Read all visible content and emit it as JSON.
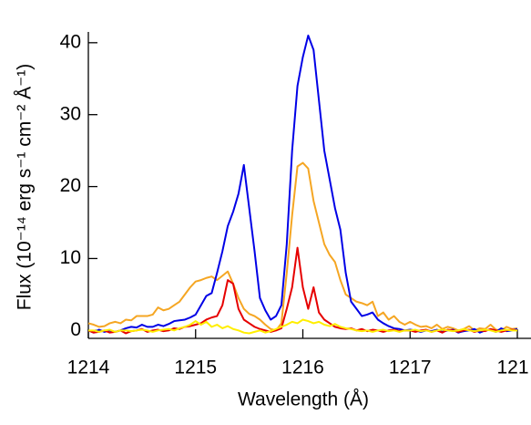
{
  "chart_data": {
    "type": "line",
    "xlabel": "Wavelength (Å)",
    "ylabel": "Flux (10⁻¹⁴ erg s⁻¹ cm⁻² Å⁻¹)",
    "x": [
      1214,
      1214.05,
      1214.1,
      1214.15,
      1214.2,
      1214.25,
      1214.3,
      1214.35,
      1214.4,
      1214.45,
      1214.5,
      1214.55,
      1214.6,
      1214.65,
      1214.7,
      1214.75,
      1214.8,
      1214.85,
      1214.9,
      1214.95,
      1215,
      1215.05,
      1215.1,
      1215.15,
      1215.2,
      1215.25,
      1215.3,
      1215.35,
      1215.4,
      1215.45,
      1215.5,
      1215.55,
      1215.6,
      1215.65,
      1215.7,
      1215.75,
      1215.8,
      1215.85,
      1215.9,
      1215.95,
      1216,
      1216.05,
      1216.1,
      1216.15,
      1216.2,
      1216.25,
      1216.3,
      1216.35,
      1216.4,
      1216.45,
      1216.5,
      1216.55,
      1216.6,
      1216.65,
      1216.7,
      1216.75,
      1216.8,
      1216.85,
      1216.9,
      1216.95,
      1217,
      1217.05,
      1217.1,
      1217.15,
      1217.2,
      1217.25,
      1217.3,
      1217.35,
      1217.4,
      1217.45,
      1217.5,
      1217.55,
      1217.6,
      1217.65,
      1217.7,
      1217.75,
      1217.8,
      1217.85,
      1217.9,
      1217.95,
      1218
    ],
    "series": [
      {
        "color": "#f5a623",
        "values": [
          1.0,
          0.8,
          0.5,
          0.6,
          1.0,
          1.2,
          1.0,
          1.5,
          1.4,
          2.0,
          2.0,
          2.0,
          2.2,
          3.2,
          2.8,
          3.0,
          3.5,
          4.0,
          5.0,
          6.0,
          6.8,
          7.0,
          7.3,
          7.5,
          7.0,
          7.6,
          8.2,
          6.5,
          4.5,
          3.0,
          2.3,
          2.0,
          1.5,
          0.8,
          0.2,
          0.0,
          1.0,
          8.0,
          16.0,
          22.8,
          23.3,
          22.5,
          18.0,
          15.0,
          12.0,
          10.5,
          9.5,
          7.0,
          5.0,
          4.5,
          4.0,
          3.8,
          3.5,
          4.0,
          2.0,
          2.5,
          1.5,
          2.0,
          1.2,
          0.8,
          1.2,
          0.8,
          0.5,
          0.6,
          0.3,
          0.8,
          0.2,
          0.5,
          0.3,
          0.0,
          0.2,
          0.6,
          0.0,
          0.3,
          0.2,
          0.8,
          0.1,
          0.0,
          0.5,
          0.2,
          0.3
        ]
      },
      {
        "color": "#0000e6",
        "values": [
          0.0,
          -0.3,
          0.1,
          -0.2,
          0.0,
          -0.2,
          0.0,
          0.3,
          0.5,
          0.4,
          0.8,
          0.5,
          0.5,
          0.8,
          0.6,
          0.9,
          1.3,
          1.4,
          1.5,
          1.8,
          2.2,
          3.5,
          4.8,
          5.2,
          8.0,
          11.0,
          14.5,
          16.5,
          19.0,
          23.0,
          17.0,
          11.0,
          4.5,
          2.8,
          1.5,
          2.0,
          3.5,
          12.0,
          25.0,
          34.0,
          38.0,
          41.0,
          39.0,
          32.0,
          25.0,
          21.0,
          17.0,
          14.0,
          8.0,
          4.0,
          3.0,
          2.0,
          2.2,
          2.5,
          1.5,
          1.0,
          0.6,
          0.3,
          0.2,
          0.0,
          0.1,
          0.0,
          -0.2,
          0.0,
          -0.1,
          0.1,
          -0.2,
          0.0,
          0.1,
          -0.3,
          -0.1,
          0.0,
          0.2,
          -0.3,
          0.0,
          0.1,
          -0.2,
          0.3,
          -0.1,
          0.0,
          0.2
        ]
      },
      {
        "color": "#e60000",
        "values": [
          0,
          -0.3,
          -0.2,
          0,
          -0.3,
          -0.2,
          0,
          -0.4,
          -0.1,
          0,
          0.2,
          -0.2,
          0,
          0.1,
          -0.1,
          0,
          0.3,
          0.2,
          0.5,
          0.6,
          0.8,
          1.0,
          1.5,
          1.8,
          2.0,
          3.5,
          7.0,
          6.5,
          3.0,
          1.5,
          1.0,
          0.5,
          0.2,
          0.0,
          -0.2,
          0.0,
          0.3,
          3.0,
          6.0,
          11.5,
          6.0,
          3.0,
          6.0,
          2.5,
          1.5,
          1.0,
          0.5,
          0.3,
          0.2,
          0.3,
          0,
          0.2,
          -0.1,
          0.1,
          0,
          -0.2,
          0,
          0.1,
          -0.1,
          0,
          0,
          -0.2,
          0,
          0.1,
          -0.2,
          0,
          -0.3,
          0.1,
          0,
          -0.2,
          0,
          0.1,
          -0.2,
          0,
          -0.1,
          0.2,
          0,
          -0.2,
          0,
          0.1,
          0
        ]
      },
      {
        "color": "#ffee00",
        "values": [
          0,
          0,
          -0.2,
          0,
          0.1,
          -0.2,
          0,
          0,
          -0.1,
          0,
          0.1,
          0,
          -0.2,
          0,
          0.1,
          0.2,
          0,
          0.3,
          0.5,
          0.8,
          1.3,
          0.8,
          1.2,
          0.5,
          0.8,
          0.3,
          0.6,
          0.2,
          0,
          -0.3,
          -0.4,
          -0.2,
          0,
          -0.3,
          -0.1,
          0.2,
          0.5,
          0.8,
          1.2,
          1.0,
          1.5,
          1.3,
          1.0,
          1.2,
          0.8,
          0.6,
          0.9,
          0.5,
          0.3,
          0.2,
          0,
          -0.1,
          0,
          -0.2,
          0,
          0.1,
          -0.1,
          0,
          -0.2,
          0,
          0,
          0.1,
          -0.1,
          0,
          -0.2,
          0,
          0.1,
          0,
          -0.1,
          0,
          0.2,
          0,
          -0.1,
          0,
          0.1,
          0,
          -0.2,
          0,
          0.1,
          0,
          0
        ]
      }
    ],
    "xlim": [
      1214,
      1218
    ],
    "xticks": [
      1214,
      1215,
      1216,
      1217,
      {
        "value": 1218,
        "label": "121"
      }
    ],
    "ylim": [
      -1.1,
      41.5
    ],
    "yticks": [
      0,
      10,
      20,
      30,
      40
    ],
    "grid": false
  }
}
